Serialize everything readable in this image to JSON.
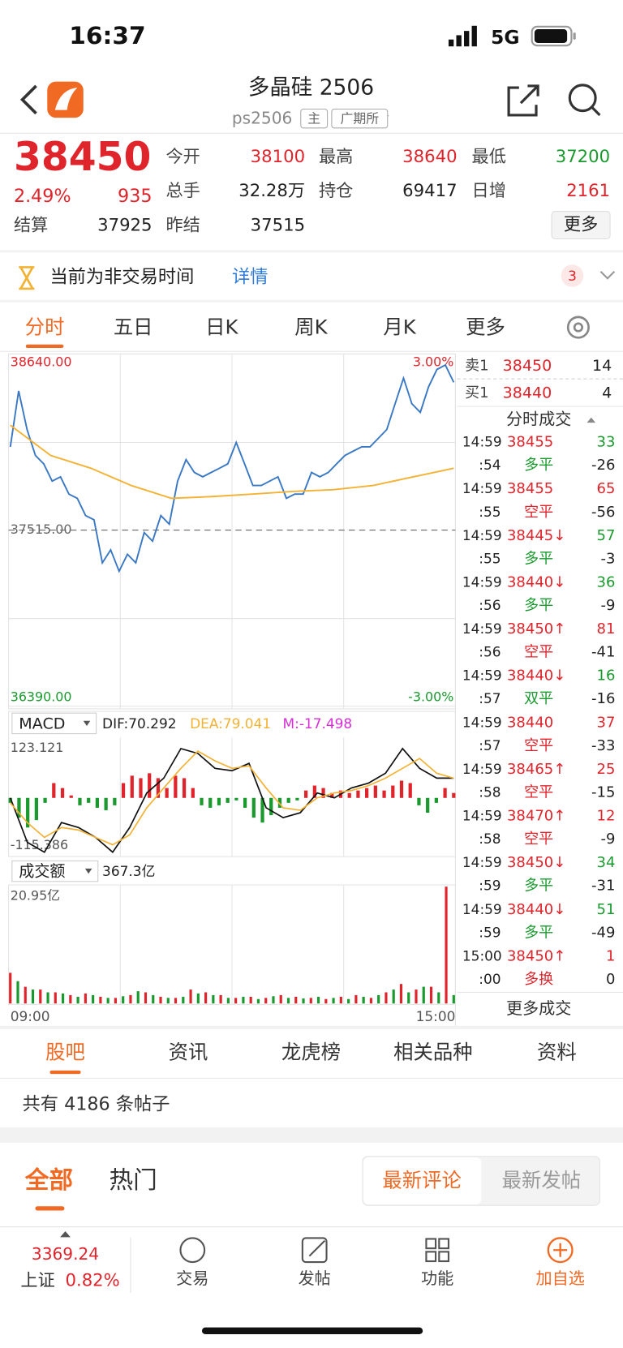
{
  "status": {
    "time": "16:37",
    "network": "5G"
  },
  "header": {
    "title": "多晶硅 2506",
    "code": "ps2506",
    "tags": [
      "主",
      "广期所"
    ]
  },
  "quote": {
    "price": "38450",
    "change_pct": "2.49%",
    "change": "935",
    "fields": [
      {
        "label": "今开",
        "value": "38100",
        "color": "#e0242b"
      },
      {
        "label": "最高",
        "value": "38640",
        "color": "#e0242b"
      },
      {
        "label": "最低",
        "value": "37200",
        "color": "#1a9a2e"
      },
      {
        "label": "总手",
        "value": "32.28万",
        "color": "#222222"
      },
      {
        "label": "持仓",
        "value": "69417",
        "color": "#222222"
      },
      {
        "label": "日增",
        "value": "2161",
        "color": "#e0242b"
      },
      {
        "label": "结算",
        "value": "37925",
        "color": "#222222"
      },
      {
        "label": "昨结",
        "value": "37515",
        "color": "#222222"
      }
    ],
    "more": "更多"
  },
  "notice": {
    "text": "当前为非交易时间",
    "link": "详情",
    "badge": "3"
  },
  "tabs": {
    "items": [
      "分时",
      "五日",
      "日K",
      "周K",
      "月K",
      "更多"
    ],
    "active": 0
  },
  "price_chart": {
    "type": "line",
    "ylim": [
      36390,
      38640
    ],
    "yticks": [
      {
        "value": 38640,
        "label": "38640.00"
      },
      {
        "value": 37515,
        "label": "37515.00"
      },
      {
        "value": 36390,
        "label": "36390.00"
      }
    ],
    "ytick_colors": [
      "#e0242b",
      "#666666",
      "#1a9a2e"
    ],
    "y2lim": [
      -3,
      3
    ],
    "y2ticks": [
      {
        "value": 3,
        "label": "3.00%"
      },
      {
        "value": -3,
        "label": "-3.00%"
      }
    ],
    "y2tick_colors": [
      "#e0242b",
      "#1a9a2e"
    ],
    "x_labels": [
      "09:00",
      "15:00"
    ],
    "series": [
      {
        "color": "#3a78c4",
        "values": [
          38047,
          38404,
          38157,
          37992,
          37938,
          37828,
          37855,
          37745,
          37718,
          37608,
          37581,
          37306,
          37389,
          37252,
          37361,
          37306,
          37499,
          37444,
          37608,
          37553,
          37828,
          37965,
          37883,
          37855,
          37883,
          37910,
          37938,
          38075,
          37938,
          37800,
          37800,
          37828,
          37855,
          37718,
          37745,
          37745,
          37883,
          37855,
          37883,
          37938,
          37992,
          38020,
          38047,
          38047,
          38102,
          38157,
          38322,
          38486,
          38322,
          38267,
          38431,
          38541,
          38569,
          38459
        ]
      },
      {
        "color": "#f3b234",
        "values": [
          38185,
          37992,
          37910,
          37800,
          37718,
          37729,
          37745,
          37762,
          37773,
          37800,
          37855,
          37910
        ]
      }
    ]
  },
  "macd": {
    "name": "MACD",
    "labels": [
      "DIF:70.292",
      "DEA:79.041",
      "M:-17.498"
    ],
    "label_colors": [
      "#222222",
      "#f3b234",
      "#d62fd6"
    ],
    "ylim": [
      -115.386,
      123.121
    ],
    "yticks": [
      {
        "value": 123.121,
        "label": "123.121"
      },
      {
        "value": -115.386,
        "label": "-115.386"
      }
    ],
    "up_color": "#e0242b",
    "down_color": "#1a9a2e",
    "histogram": [
      -10,
      -40,
      -60,
      -45,
      -10,
      30,
      20,
      5,
      -15,
      -10,
      -20,
      -25,
      -15,
      30,
      45,
      40,
      50,
      40,
      20,
      45,
      40,
      20,
      -15,
      -20,
      -15,
      -10,
      -5,
      -20,
      -40,
      -50,
      -35,
      -20,
      -10,
      -5,
      15,
      25,
      20,
      10,
      15,
      10,
      15,
      20,
      25,
      15,
      25,
      35,
      30,
      -15,
      -30,
      -10,
      20,
      10
    ],
    "series": [
      {
        "color": "#111111",
        "values": [
          0,
          -90,
          -110,
          -50,
          -60,
          -80,
          -110,
          -60,
          10,
          40,
          100,
          90,
          60,
          55,
          70,
          -20,
          -40,
          -30,
          10,
          0,
          20,
          30,
          50,
          100,
          60,
          40,
          40
        ]
      },
      {
        "color": "#f3b234",
        "values": [
          -10,
          -50,
          -80,
          -60,
          -65,
          -80,
          -95,
          -75,
          -20,
          20,
          60,
          95,
          75,
          60,
          65,
          20,
          -20,
          -25,
          0,
          10,
          15,
          25,
          40,
          60,
          80,
          50,
          40
        ]
      }
    ]
  },
  "volume": {
    "name": "成交额",
    "total": "367.3亿",
    "ylim": [
      0,
      20.95
    ],
    "yticks": [
      {
        "value": 20.95,
        "label": "20.95亿"
      }
    ],
    "series": [
      {
        "color": "#e0242b",
        "values": [
          5.5,
          3,
          2.5,
          2,
          1.5,
          1.8,
          1.2,
          1,
          1.5,
          2,
          1.2,
          1,
          2.5,
          2,
          1.5,
          1,
          1.2,
          1,
          1.5,
          1.2,
          1,
          0.8,
          1.2,
          1.5,
          1,
          2,
          3.5,
          2.5,
          3,
          20.95
        ]
      },
      {
        "color": "#1a9a2e",
        "values": [
          4,
          2.5,
          2,
          1.8,
          1.2,
          1.5,
          1,
          1.3,
          2.2,
          1.5,
          1,
          1.2,
          1.8,
          1.5,
          1,
          1.2,
          0.8,
          1.3,
          1,
          0.9,
          1.2,
          1,
          0.8,
          1.2,
          1.5,
          2.5,
          2,
          3,
          2,
          1.5
        ]
      }
    ]
  },
  "orderbook": [
    {
      "label": "卖1",
      "price": "38450",
      "qty": "14"
    },
    {
      "label": "买1",
      "price": "38440",
      "qty": "4"
    }
  ],
  "trades": {
    "title": "分时成交",
    "rows": [
      {
        "time": "14:59",
        "price": "38455",
        "qty": "33",
        "sec": ":54",
        "kind": "多平",
        "oi": "-26",
        "color": "#1a9a2e"
      },
      {
        "time": "14:59",
        "price": "38455",
        "qty": "65",
        "sec": ":55",
        "kind": "空平",
        "oi": "-56",
        "color": "#e0242b"
      },
      {
        "time": "14:59",
        "price": "38445↓",
        "qty": "57",
        "sec": ":55",
        "kind": "多平",
        "oi": "-3",
        "color": "#1a9a2e"
      },
      {
        "time": "14:59",
        "price": "38440↓",
        "qty": "36",
        "sec": ":56",
        "kind": "多平",
        "oi": "-9",
        "color": "#1a9a2e"
      },
      {
        "time": "14:59",
        "price": "38450↑",
        "qty": "81",
        "sec": ":56",
        "kind": "空平",
        "oi": "-41",
        "color": "#e0242b"
      },
      {
        "time": "14:59",
        "price": "38440↓",
        "qty": "16",
        "sec": ":57",
        "kind": "双平",
        "oi": "-16",
        "color": "#1a9a2e"
      },
      {
        "time": "14:59",
        "price": "38440",
        "qty": "37",
        "sec": ":57",
        "kind": "空平",
        "oi": "-33",
        "color": "#e0242b"
      },
      {
        "time": "14:59",
        "price": "38465↑",
        "qty": "25",
        "sec": ":58",
        "kind": "空平",
        "oi": "-15",
        "color": "#e0242b"
      },
      {
        "time": "14:59",
        "price": "38470↑",
        "qty": "12",
        "sec": ":58",
        "kind": "空平",
        "oi": "-9",
        "color": "#e0242b"
      },
      {
        "time": "14:59",
        "price": "38450↓",
        "qty": "34",
        "sec": ":59",
        "kind": "多平",
        "oi": "-31",
        "color": "#1a9a2e"
      },
      {
        "time": "14:59",
        "price": "38440↓",
        "qty": "51",
        "sec": ":59",
        "kind": "多平",
        "oi": "-49",
        "color": "#1a9a2e"
      },
      {
        "time": "15:00",
        "price": "38450↑",
        "qty": "1",
        "sec": ":00",
        "kind": "多换",
        "oi": "0",
        "color": "#e0242b"
      }
    ],
    "more": "更多成交"
  },
  "sections": {
    "items": [
      "股吧",
      "资讯",
      "龙虎榜",
      "相关品种",
      "资料"
    ],
    "active": 0
  },
  "posts": {
    "count": "共有 4186 条帖子",
    "filters": [
      "全部",
      "热门"
    ],
    "sort": [
      "最新评论",
      "最新发帖"
    ]
  },
  "bottom": {
    "index_value": "3369.24",
    "index_name": "上证",
    "index_pct": "0.82%",
    "nav": [
      "交易",
      "发帖",
      "功能",
      "加自选"
    ]
  }
}
